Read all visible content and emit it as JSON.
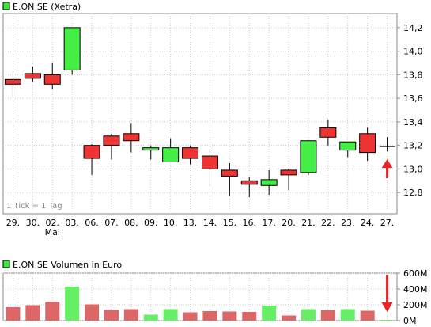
{
  "chart_data": [
    {
      "type": "candlestick",
      "title": "E.ON SE (Xetra)",
      "legend_color": "#33ee33",
      "note": "1 Tick = 1 Tag",
      "categories": [
        "29.",
        "30.",
        "02.",
        "03.",
        "06.",
        "07.",
        "08.",
        "09.",
        "10.",
        "13.",
        "14.",
        "15.",
        "16.",
        "17.",
        "20.",
        "21.",
        "22.",
        "23.",
        "24.",
        "27."
      ],
      "category_sublabels": {
        "2": "Mai"
      },
      "ohlc": [
        {
          "open": 13.76,
          "high": 13.83,
          "low": 13.6,
          "close": 13.72
        },
        {
          "open": 13.81,
          "high": 13.87,
          "low": 13.74,
          "close": 13.77
        },
        {
          "open": 13.8,
          "high": 13.9,
          "low": 13.68,
          "close": 13.72
        },
        {
          "open": 13.84,
          "high": 14.2,
          "low": 13.8,
          "close": 14.2
        },
        {
          "open": 13.2,
          "high": 13.21,
          "low": 12.95,
          "close": 13.09
        },
        {
          "open": 13.28,
          "high": 13.3,
          "low": 13.08,
          "close": 13.2
        },
        {
          "open": 13.3,
          "high": 13.39,
          "low": 13.14,
          "close": 13.24
        },
        {
          "open": 13.16,
          "high": 13.2,
          "low": 13.08,
          "close": 13.18
        },
        {
          "open": 13.06,
          "high": 13.26,
          "low": 13.06,
          "close": 13.18
        },
        {
          "open": 13.18,
          "high": 13.2,
          "low": 13.04,
          "close": 13.09
        },
        {
          "open": 13.11,
          "high": 13.17,
          "low": 12.85,
          "close": 13.0
        },
        {
          "open": 12.99,
          "high": 13.05,
          "low": 12.77,
          "close": 12.94
        },
        {
          "open": 12.9,
          "high": 12.93,
          "low": 12.76,
          "close": 12.87
        },
        {
          "open": 12.86,
          "high": 12.99,
          "low": 12.78,
          "close": 12.91
        },
        {
          "open": 12.99,
          "high": 13.0,
          "low": 12.82,
          "close": 12.95
        },
        {
          "open": 12.97,
          "high": 13.24,
          "low": 12.95,
          "close": 13.24
        },
        {
          "open": 13.35,
          "high": 13.42,
          "low": 13.2,
          "close": 13.27
        },
        {
          "open": 13.16,
          "high": 13.23,
          "low": 13.1,
          "close": 13.23
        },
        {
          "open": 13.3,
          "high": 13.35,
          "low": 13.07,
          "close": 13.14
        },
        {
          "open": 13.19,
          "high": 13.27,
          "low": 13.15,
          "close": 13.19
        }
      ],
      "ylim": [
        12.62,
        14.32
      ],
      "yticks": [
        12.8,
        13.0,
        13.2,
        13.4,
        13.6,
        13.8,
        14.0,
        14.2
      ],
      "ytick_labels": [
        "12,8",
        "13,0",
        "13,2",
        "13,4",
        "13,6",
        "13,8",
        "14,0",
        "14,2"
      ],
      "grid": true,
      "colors": {
        "up": "#44ee44",
        "down": "#ee3333",
        "neutral": "#000000",
        "arrow": "#ee2222"
      },
      "annotations": [
        {
          "type": "arrow",
          "index": 19
        }
      ]
    },
    {
      "type": "bar",
      "title": "E.ON SE Volumen in Euro",
      "legend_color": "#33ee33",
      "categories": [
        "29.",
        "30.",
        "02.",
        "03.",
        "06.",
        "07.",
        "08.",
        "09.",
        "10.",
        "13.",
        "14.",
        "15.",
        "16.",
        "17.",
        "20.",
        "21.",
        "22.",
        "23.",
        "24.",
        "27."
      ],
      "values": [
        170,
        195,
        240,
        430,
        205,
        135,
        145,
        75,
        145,
        105,
        120,
        115,
        110,
        190,
        65,
        145,
        130,
        145,
        125,
        10
      ],
      "unit": "M",
      "ylim": [
        0,
        600
      ],
      "yticks": [
        0,
        200,
        400,
        600
      ],
      "ytick_labels": [
        "0M",
        "200M",
        "400M",
        "600M"
      ],
      "grid": true,
      "colors": {
        "up": "#66ee66",
        "down": "#dd6666"
      },
      "annotations": [
        {
          "type": "arrow",
          "index": 19
        }
      ]
    }
  ]
}
